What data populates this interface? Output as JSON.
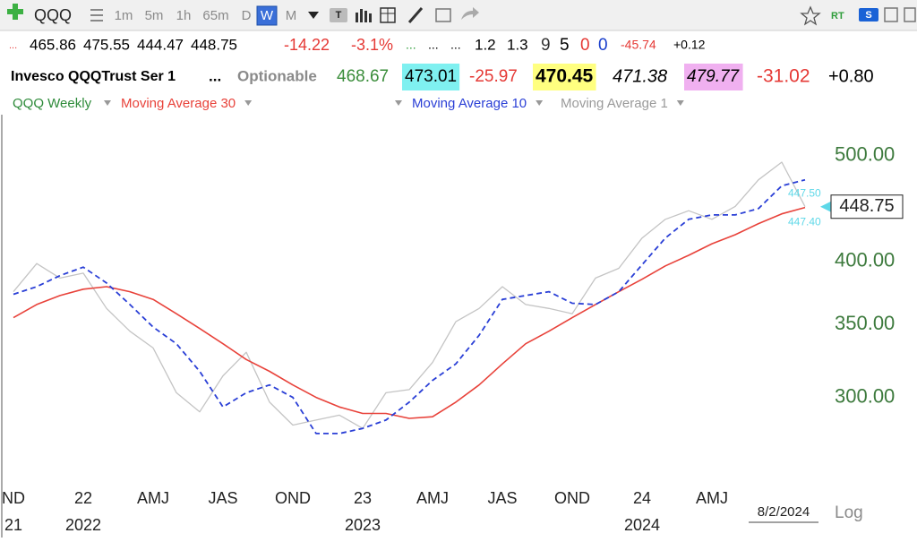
{
  "toolbar": {
    "symbol": "QQQ",
    "timeframes": [
      "1m",
      "5m",
      "1h",
      "65m",
      "D",
      "W",
      "M"
    ],
    "active_index": 5
  },
  "quote_row": [
    {
      "text": "...",
      "color": "#e53935",
      "size": 11
    },
    {
      "text": "465.86",
      "color": "#000000",
      "size": 17
    },
    {
      "text": "475.55",
      "color": "#000000",
      "size": 17
    },
    {
      "text": "444.47",
      "color": "#000000",
      "size": 17
    },
    {
      "text": "448.75",
      "color": "#000000",
      "size": 17
    },
    {
      "text": "-14.22",
      "color": "#e53935",
      "size": 18
    },
    {
      "text": "-3.1%",
      "color": "#e53935",
      "size": 18
    },
    {
      "text": "...",
      "color": "#2e9d3a",
      "size": 14
    },
    {
      "text": "...",
      "color": "#000000",
      "size": 14
    },
    {
      "text": "...",
      "color": "#000000",
      "size": 14
    },
    {
      "text": "1.2",
      "color": "#000000",
      "size": 17
    },
    {
      "text": "1.3",
      "color": "#000000",
      "size": 17
    },
    {
      "text": "9",
      "color": "#333333",
      "size": 19
    },
    {
      "text": "5",
      "color": "#000000",
      "size": 19
    },
    {
      "text": "0",
      "color": "#e53935",
      "size": 19
    },
    {
      "text": "0",
      "color": "#1a3fcc",
      "size": 19
    },
    {
      "text": "-45.74",
      "color": "#e53935",
      "size": 14
    },
    {
      "text": "+0.12",
      "color": "#000000",
      "size": 14
    }
  ],
  "info_row": [
    {
      "text": "Invesco QQQTrust Ser 1",
      "color": "#000000",
      "size": 16,
      "weight": "bold"
    },
    {
      "text": "...",
      "color": "#000000",
      "size": 17,
      "weight": "bold"
    },
    {
      "text": "Optionable",
      "color": "#8a8a8a",
      "size": 17,
      "weight": "bold"
    },
    {
      "text": "468.67",
      "color": "#3a8d3a",
      "size": 19
    },
    {
      "text": "473.01",
      "color": "#000000",
      "size": 19,
      "bg": "#7ff0f0"
    },
    {
      "text": "-25.97",
      "color": "#e53935",
      "size": 19
    },
    {
      "text": "470.45",
      "color": "#000000",
      "size": 21,
      "weight": "bold",
      "bg": "#ffff80"
    },
    {
      "text": "471.38",
      "color": "#000000",
      "size": 20,
      "style": "italic"
    },
    {
      "text": "479.77",
      "color": "#000000",
      "size": 19,
      "style": "italic",
      "bg": "#f0b0f0"
    },
    {
      "text": "-31.02",
      "color": "#e53935",
      "size": 21
    },
    {
      "text": "+0.80",
      "color": "#000000",
      "size": 20
    }
  ],
  "chart_data": {
    "type": "line",
    "symbol_label": "QQQ Weekly",
    "symbol_color": "#2e8b3a",
    "log_scale": true,
    "categories": [
      "ND",
      null,
      null,
      "22",
      null,
      null,
      "AMJ",
      null,
      null,
      "JAS",
      null,
      null,
      "OND",
      null,
      null,
      "23",
      null,
      null,
      "AMJ",
      null,
      null,
      "JAS",
      null,
      null,
      "OND",
      null,
      null,
      "24",
      null,
      null,
      "AMJ",
      null,
      null,
      null,
      null
    ],
    "year_labels": [
      "21",
      null,
      null,
      "2022",
      null,
      null,
      null,
      null,
      null,
      null,
      null,
      null,
      null,
      null,
      null,
      "2023",
      null,
      null,
      null,
      null,
      null,
      null,
      null,
      null,
      null,
      null,
      null,
      "2024",
      null,
      null,
      null,
      null,
      null,
      null,
      null
    ],
    "series": [
      {
        "name": "Moving Average 30",
        "color": "#e8423a",
        "dash": false,
        "width": 1.6,
        "values": [
          355,
          365,
          372,
          377,
          379,
          375,
          369,
          358,
          347,
          336,
          325,
          317,
          308,
          300,
          294,
          290,
          290,
          287,
          288,
          297,
          308,
          322,
          336,
          345,
          355,
          365,
          375,
          385,
          396,
          405,
          415,
          423,
          433,
          442,
          448
        ]
      },
      {
        "name": "Moving Average 10",
        "color": "#2a3fd6",
        "dash": true,
        "width": 1.8,
        "values": [
          373,
          379,
          388,
          395,
          382,
          365,
          348,
          336,
          317,
          294,
          303,
          308,
          300,
          278,
          278,
          281,
          286,
          297,
          311,
          322,
          342,
          369,
          372,
          375,
          366,
          365,
          375,
          397,
          420,
          437,
          441,
          441,
          447,
          469,
          475
        ]
      },
      {
        "name": "Moving Average 1",
        "color": "#c4c4c4",
        "dash": false,
        "width": 1.3,
        "values": [
          375,
          398,
          386,
          390,
          362,
          345,
          333,
          303,
          291,
          314,
          330,
          297,
          283,
          286,
          289,
          281,
          303,
          305,
          323,
          352,
          362,
          379,
          365,
          362,
          358,
          386,
          394,
          420,
          437,
          445,
          437,
          449,
          475,
          493,
          448.75
        ]
      }
    ],
    "ylim": [
      250,
      545
    ],
    "yticks": [
      {
        "value": 300,
        "label": "300.00"
      },
      {
        "value": 350,
        "label": "350.00"
      },
      {
        "value": 400,
        "label": "400.00"
      },
      {
        "value": 500,
        "label": "500.00"
      }
    ],
    "axis_label_color": "#3d7a3d",
    "last_value": {
      "value": 448.75,
      "label": "448.75"
    },
    "side_labels": [
      {
        "value": 447.5,
        "label": "447.50"
      },
      {
        "value": 447.4,
        "label": "447.40"
      }
    ],
    "date_label": "8/2/2024",
    "scale_label": "Log"
  }
}
